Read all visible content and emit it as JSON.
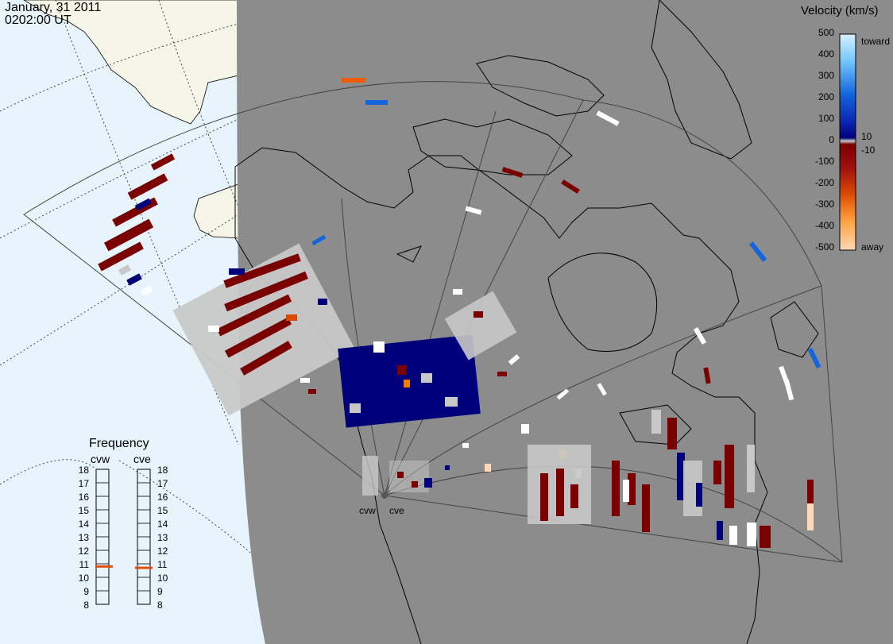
{
  "header": {
    "date": "January, 31 2011",
    "time": "0202:00 UT"
  },
  "colorbar": {
    "title": "Velocity (km/s)",
    "ticks": [
      "500",
      "400",
      "300",
      "200",
      "100",
      "0",
      "-100",
      "-200",
      "-300",
      "-400",
      "-500"
    ],
    "inner_labels": [
      "10",
      "-10"
    ],
    "toward_label": "toward",
    "away_label": "away",
    "colors": [
      "#ffd9b5",
      "#ffa040",
      "#f57a00",
      "#d94a00",
      "#a01010",
      "#7a0000",
      "#c8c8c8",
      "#00007a",
      "#0a2ab4",
      "#1464dc",
      "#2896f0",
      "#78c8ff",
      "#d8f0ff"
    ]
  },
  "frequency": {
    "title": "Frequency",
    "radars": [
      "cvw",
      "cve"
    ],
    "ticks": [
      "18",
      "17",
      "16",
      "15",
      "14",
      "13",
      "12",
      "11",
      "10",
      "9",
      "8"
    ],
    "values_mhz": [
      10.8,
      10.7
    ],
    "marker_color": "#e05010"
  },
  "radar_sites": [
    "cvw",
    "cve"
  ],
  "map": {
    "ocean_color": "#e8f4fc",
    "land_color": "#f5f5e8",
    "night_color": "#8c8c8c"
  }
}
